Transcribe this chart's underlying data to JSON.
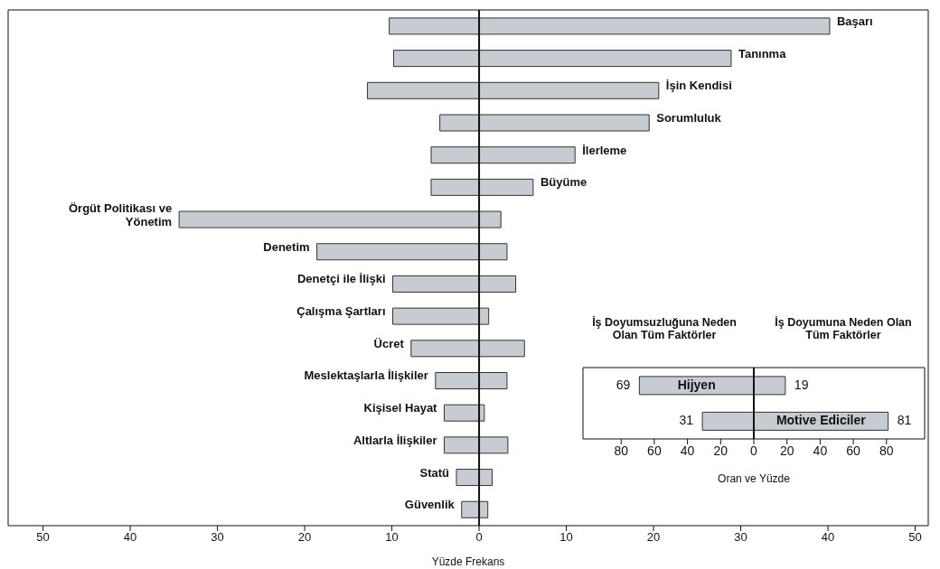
{
  "chart_data": [
    {
      "type": "bar",
      "orientation": "horizontal",
      "stacked": true,
      "categories": [
        "Başarı",
        "Tanınma",
        "İşin Kendisi",
        "Sorumluluk",
        "İlerleme",
        "Büyüme",
        "Örgüt Politikası ve\nYönetim",
        "Denetim",
        "Denetçi ile İlişki",
        "Çalışma Şartları",
        "Ücret",
        "Meslektaşlarla İlişkiler",
        "Kişisel Hayat",
        "Altlarla İlişkiler",
        "Statü",
        "Güvenlik"
      ],
      "series": [
        {
          "color": "#c7cbd2",
          "values": [
            -10.3,
            -9.8,
            -12.8,
            -4.5,
            -5.5,
            -5.5,
            -34.4,
            -18.6,
            -9.9,
            -9.9,
            -7.8,
            -5,
            -4,
            -4,
            -2.6,
            -2
          ]
        },
        {
          "color": "#c7cbd2",
          "values": [
            40.2,
            28.9,
            20.6,
            19.5,
            11,
            6.2,
            2.5,
            3.2,
            4.2,
            1.1,
            5.2,
            3.2,
            0.6,
            3.3,
            1.5,
            1
          ]
        }
      ],
      "xlim": [
        -54,
        51.5
      ],
      "xticks": [
        {
          "value": -50,
          "label": "50"
        },
        {
          "value": -40,
          "label": "40"
        },
        {
          "value": -30,
          "label": "30"
        },
        {
          "value": -20,
          "label": "20"
        },
        {
          "value": -10,
          "label": "10"
        },
        0,
        10,
        20,
        30,
        40,
        50
      ],
      "xlabel": "Yüzde Frekans",
      "ref_lines": [
        {
          "axis": "x",
          "value": 0
        }
      ],
      "legend": false,
      "grid": false
    },
    {
      "type": "bar",
      "orientation": "horizontal",
      "categories": [
        "Hijyen",
        "Motive Ediciler"
      ],
      "series": [
        {
          "color": "#c7cbd2",
          "base": [
            -69,
            -31
          ],
          "values": [
            69,
            31
          ],
          "value_labels": [
            "69",
            "31"
          ]
        },
        {
          "color": "#c7cbd2",
          "values": [
            19,
            81
          ],
          "value_labels": [
            "19",
            "81"
          ]
        }
      ],
      "xlim": [
        -103,
        103
      ],
      "xticks": [
        {
          "value": -80,
          "label": "80"
        },
        {
          "value": -60,
          "label": "60"
        },
        {
          "value": -40,
          "label": "40"
        },
        {
          "value": -20,
          "label": "20"
        },
        0,
        20,
        40,
        60,
        80
      ],
      "xlabel": "Oran ve Yüzde",
      "annotations": [
        "İş Doyumsuzluğuna Neden Olan Tüm Faktörler",
        "İş Doyumuna Neden Olan Tüm Faktörler"
      ],
      "ref_lines": [
        {
          "axis": "x",
          "value": 0
        }
      ],
      "legend": false,
      "grid": false
    }
  ]
}
